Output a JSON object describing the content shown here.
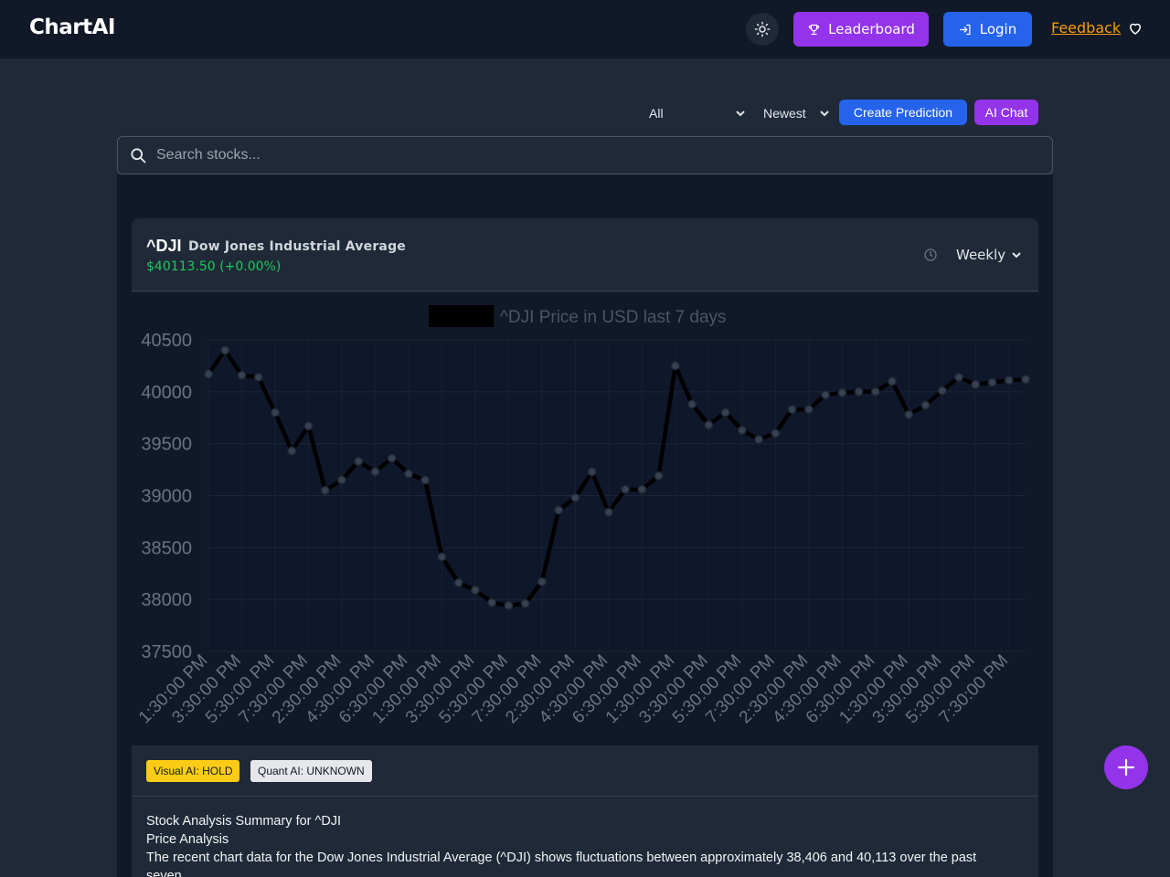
{
  "header": {
    "brand": "ChartAI",
    "leaderboard_label": "Leaderboard",
    "login_label": "Login",
    "feedback_label": "Feedback"
  },
  "controls": {
    "filter_value": "All",
    "sort_value": "Newest",
    "create_label": "Create Prediction",
    "ai_chat_label": "AI Chat"
  },
  "search": {
    "placeholder": "Search stocks..."
  },
  "card": {
    "ticker": "^DJI",
    "company": "Dow Jones Industrial Average",
    "price": "$40113.50 (+0.00%)",
    "timeframe": "Weekly",
    "signals": {
      "visual": "Visual AI: HOLD",
      "quant": "Quant AI: UNKNOWN"
    },
    "summary": {
      "line1": "Stock Analysis Summary for ^DJI",
      "line2": "Price Analysis",
      "line3": "The recent chart data for the Dow Jones Industrial Average (^DJI) shows fluctuations between approximately 38,406 and 40,113 over the past",
      "line4": "seven"
    }
  },
  "colors": {
    "accent_purple": "#9333ea",
    "accent_blue": "#2563eb",
    "positive": "#22c55e",
    "feedback": "#f59e0b",
    "hold_badge": "#facc15"
  },
  "chart_data": {
    "type": "line",
    "title": "^DJI Price in USD last 7 days",
    "ylim": [
      37500,
      40500
    ],
    "yticks": [
      40500,
      40000,
      39500,
      39000,
      38500,
      38000,
      37500
    ],
    "xtick_labels": [
      "1:30:00 PM",
      "3:30:00 PM",
      "5:30:00 PM",
      "7:30:00 PM",
      "2:30:00 PM",
      "4:30:00 PM",
      "6:30:00 PM",
      "1:30:00 PM",
      "3:30:00 PM",
      "5:30:00 PM",
      "7:30:00 PM",
      "2:30:00 PM",
      "4:30:00 PM",
      "6:30:00 PM",
      "1:30:00 PM",
      "3:30:00 PM",
      "5:30:00 PM",
      "7:30:00 PM",
      "2:30:00 PM",
      "4:30:00 PM",
      "6:30:00 PM",
      "1:30:00 PM",
      "3:30:00 PM",
      "5:30:00 PM",
      "7:30:00 PM"
    ],
    "series": [
      {
        "values": [
          40170,
          40400,
          40160,
          40140,
          39800,
          39430,
          39670,
          39050,
          39150,
          39330,
          39230,
          39360,
          39210,
          39150,
          38410,
          38160,
          38090,
          37970,
          37940,
          37960,
          38170,
          38860,
          38980,
          39230,
          38840,
          39060,
          39060,
          39190,
          40250,
          39880,
          39680,
          39800,
          39630,
          39540,
          39600,
          39830,
          39830,
          39970,
          39990,
          40000,
          40000,
          40100,
          39780,
          39870,
          40010,
          40140,
          40070,
          40090,
          40110,
          40120
        ]
      }
    ],
    "grid": true
  }
}
